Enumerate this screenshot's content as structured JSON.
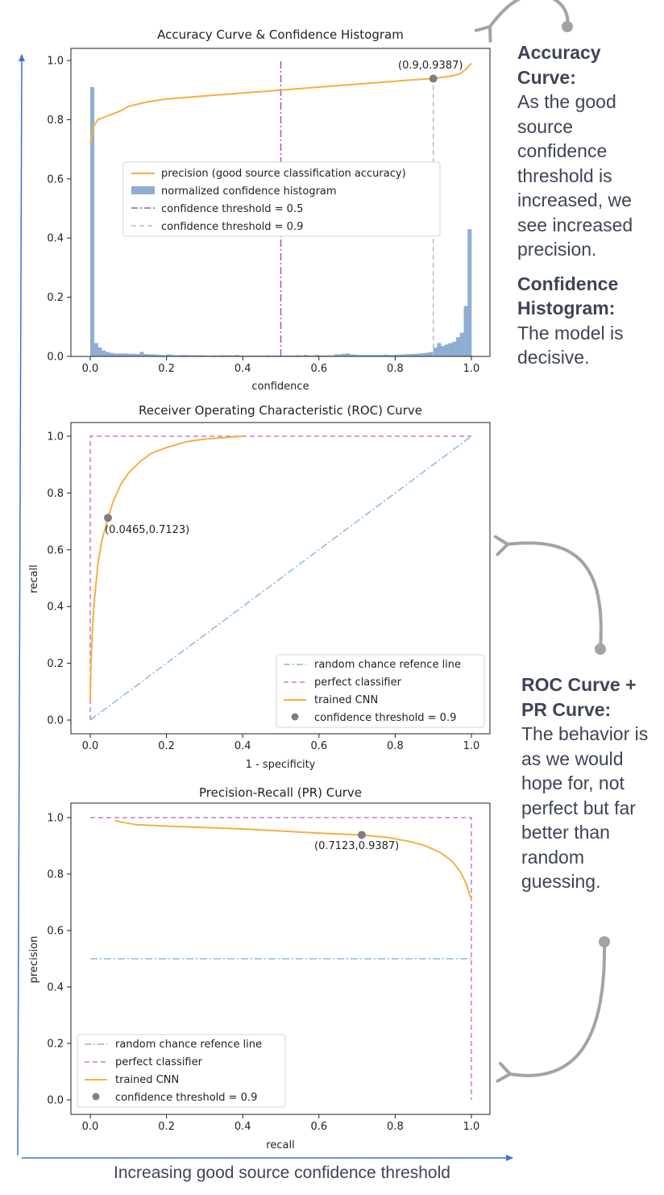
{
  "colors": {
    "precision": "#f5b041",
    "histogram": "#8eaed3",
    "threshold_05": "#a456b5",
    "threshold_09": "#bdbdbd",
    "random": "#8eb9da",
    "perfect": "#c57dc8",
    "trained": "#f5b041",
    "marker": "#7f7f7f",
    "arrow": "#4472c4",
    "curl": "#a3a3a3",
    "text_dark": "#3d4555"
  },
  "annotations": {
    "accuracy_title": "Accuracy Curve:",
    "accuracy_body": "As the good source confidence threshold is increased, we see increased precision.",
    "histogram_title": "Confidence Histogram:",
    "histogram_body": "The model is decisive.",
    "rocpr_title": "ROC Curve + PR Curve:",
    "rocpr_body": "The behavior is as we would hope for, not perfect but far better than random guessing.",
    "footer": "Increasing good source confidence threshold"
  },
  "chart_data": [
    {
      "type": "line",
      "title": "Accuracy Curve & Confidence Histogram",
      "xlabel": "confidence",
      "ylabel": "",
      "xlim": [
        0,
        1
      ],
      "ylim": [
        0,
        1
      ],
      "xticks": [
        "0.0",
        "0.2",
        "0.4",
        "0.6",
        "0.8",
        "1.0"
      ],
      "yticks": [
        "0.0",
        "0.2",
        "0.4",
        "0.6",
        "0.8",
        "1.0"
      ],
      "legend_position": "center-left",
      "legend": [
        "precision (good source classification accuracy)",
        "normalized confidence histogram",
        "confidence threshold = 0.5",
        "confidence threshold = 0.9"
      ],
      "histogram": {
        "bin_width": 0.01,
        "heights": [
          0.91,
          0.045,
          0.03,
          0.02,
          0.015,
          0.012,
          0.01,
          0.01,
          0.01,
          0.01,
          0.009,
          0.009,
          0.008,
          0.015,
          0.008,
          0.007,
          0.007,
          0.006,
          0.005,
          0.004,
          0.007,
          0.005,
          0.004,
          0.004,
          0.005,
          0.004,
          0.004,
          0.004,
          0.004,
          0.004,
          0.003,
          0.003,
          0.004,
          0.003,
          0.004,
          0.004,
          0.004,
          0.003,
          0.005,
          0.003,
          0.003,
          0.003,
          0.003,
          0.003,
          0.003,
          0.003,
          0.004,
          0.003,
          0.003,
          0.003,
          0.003,
          0.003,
          0.003,
          0.003,
          0.004,
          0.003,
          0.005,
          0.003,
          0.003,
          0.005,
          0.003,
          0.003,
          0.004,
          0.003,
          0.007,
          0.007,
          0.009,
          0.01,
          0.007,
          0.006,
          0.005,
          0.005,
          0.005,
          0.005,
          0.005,
          0.005,
          0.005,
          0.006,
          0.005,
          0.005,
          0.006,
          0.006,
          0.007,
          0.008,
          0.008,
          0.009,
          0.01,
          0.011,
          0.013,
          0.015,
          0.03,
          0.045,
          0.035,
          0.04,
          0.045,
          0.05,
          0.065,
          0.08,
          0.17,
          0.43
        ]
      },
      "precision_curve": {
        "x": [
          0.0,
          0.01,
          0.02,
          0.04,
          0.06,
          0.08,
          0.1,
          0.15,
          0.2,
          0.25,
          0.3,
          0.4,
          0.5,
          0.6,
          0.7,
          0.8,
          0.85,
          0.9,
          0.95,
          0.97,
          0.98,
          0.99,
          0.995,
          1.0
        ],
        "y": [
          0.72,
          0.78,
          0.8,
          0.81,
          0.82,
          0.83,
          0.845,
          0.86,
          0.87,
          0.875,
          0.88,
          0.89,
          0.9,
          0.91,
          0.92,
          0.93,
          0.935,
          0.939,
          0.948,
          0.955,
          0.965,
          0.975,
          0.985,
          0.99
        ]
      },
      "threshold_lines": [
        0.5,
        0.9
      ],
      "marker": {
        "x": 0.9,
        "y": 0.9387,
        "label": "(0.9,0.9387)"
      }
    },
    {
      "type": "line",
      "title": "Receiver Operating Characteristic (ROC) Curve",
      "xlabel": "1 - specificity",
      "ylabel": "recall",
      "xlim": [
        0,
        1
      ],
      "ylim": [
        0,
        1
      ],
      "xticks": [
        "0.0",
        "0.2",
        "0.4",
        "0.6",
        "0.8",
        "1.0"
      ],
      "yticks": [
        "0.0",
        "0.2",
        "0.4",
        "0.6",
        "0.8",
        "1.0"
      ],
      "legend_position": "lower-right",
      "legend": [
        "random chance refence line",
        "perfect classifier",
        "trained CNN",
        "confidence threshold = 0.9"
      ],
      "series": [
        {
          "name": "random chance refence line",
          "x": [
            0,
            1
          ],
          "y": [
            0,
            1
          ]
        },
        {
          "name": "perfect classifier",
          "x": [
            0,
            0,
            1
          ],
          "y": [
            0,
            1,
            1
          ]
        },
        {
          "name": "trained CNN",
          "x": [
            0.0,
            0.002,
            0.005,
            0.01,
            0.015,
            0.02,
            0.03,
            0.0465,
            0.06,
            0.08,
            0.1,
            0.13,
            0.16,
            0.2,
            0.25,
            0.3,
            0.35,
            0.4
          ],
          "y": [
            0.07,
            0.2,
            0.3,
            0.41,
            0.48,
            0.55,
            0.63,
            0.7123,
            0.77,
            0.83,
            0.87,
            0.91,
            0.94,
            0.96,
            0.98,
            0.99,
            0.995,
            1.0
          ]
        }
      ],
      "marker": {
        "x": 0.0465,
        "y": 0.7123,
        "label": "(0.0465,0.7123)"
      }
    },
    {
      "type": "line",
      "title": "Precision-Recall (PR) Curve",
      "xlabel": "recall",
      "ylabel": "precision",
      "xlim": [
        0,
        1
      ],
      "ylim": [
        0,
        1
      ],
      "xticks": [
        "0.0",
        "0.2",
        "0.4",
        "0.6",
        "0.8",
        "1.0"
      ],
      "yticks": [
        "0.0",
        "0.2",
        "0.4",
        "0.6",
        "0.8",
        "1.0"
      ],
      "legend_position": "lower-left",
      "legend": [
        "random chance refence line",
        "perfect classifier",
        "trained CNN",
        "confidence threshold = 0.9"
      ],
      "series": [
        {
          "name": "random chance refence line",
          "x": [
            0,
            1
          ],
          "y": [
            0.5,
            0.5
          ]
        },
        {
          "name": "perfect classifier",
          "x": [
            0,
            1,
            1
          ],
          "y": [
            1,
            1,
            0
          ]
        },
        {
          "name": "trained CNN",
          "x": [
            0.065,
            0.08,
            0.12,
            0.2,
            0.3,
            0.4,
            0.5,
            0.6,
            0.65,
            0.7123,
            0.78,
            0.84,
            0.88,
            0.92,
            0.95,
            0.97,
            0.985,
            0.995,
            1.0
          ],
          "y": [
            0.99,
            0.985,
            0.975,
            0.97,
            0.965,
            0.96,
            0.953,
            0.945,
            0.942,
            0.9387,
            0.93,
            0.915,
            0.9,
            0.875,
            0.845,
            0.81,
            0.77,
            0.73,
            0.71
          ]
        }
      ],
      "marker": {
        "x": 0.7123,
        "y": 0.9387,
        "label": "(0.7123,0.9387)"
      }
    }
  ]
}
